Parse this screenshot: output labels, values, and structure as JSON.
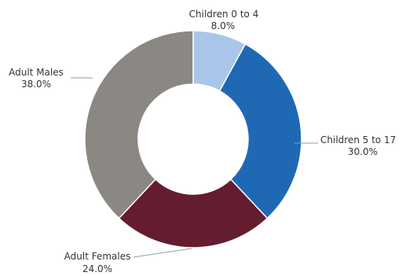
{
  "chart_data": {
    "type": "pie",
    "style": "donut",
    "title": "",
    "slices": [
      {
        "name": "Children  0 to 4",
        "value": 8.0,
        "label": "8.0%",
        "color": "#a9c6ea"
      },
      {
        "name": "Children 5 to 17",
        "value": 30.0,
        "label": "30.0%",
        "color": "#1f69b4"
      },
      {
        "name": "Adult Females",
        "value": 24.0,
        "label": "24.0%",
        "color": "#641c2f"
      },
      {
        "name": "Adult Males",
        "value": 38.0,
        "label": "38.0%",
        "color": "#8b8782"
      }
    ]
  }
}
